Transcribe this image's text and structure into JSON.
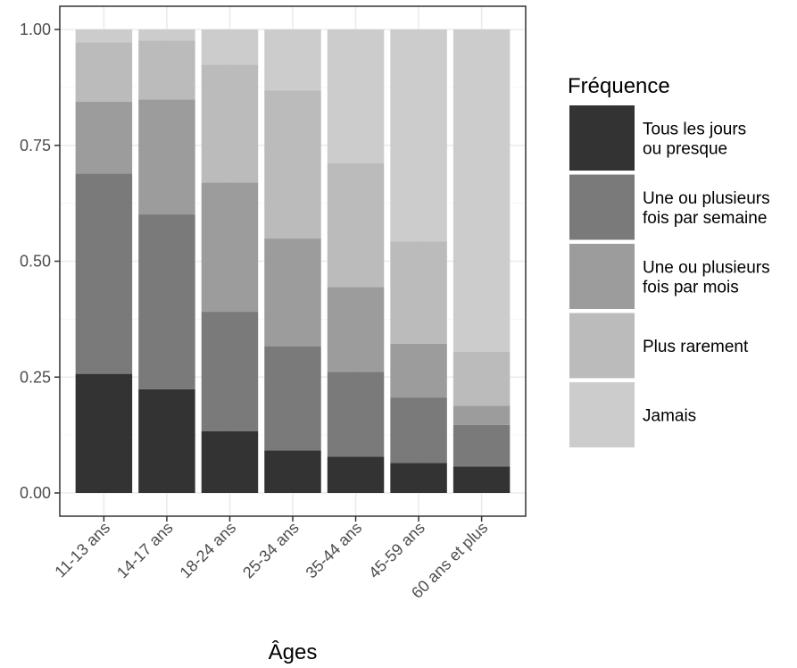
{
  "chart_data": {
    "type": "bar",
    "stacked": true,
    "xlabel": "Âges",
    "ylabel": "",
    "ylim": [
      0,
      1
    ],
    "yticks": [
      "0.00",
      "0.25",
      "0.50",
      "0.75",
      "1.00"
    ],
    "grid": true,
    "legend_position": "right",
    "legend_title": "Fréquence",
    "categories": [
      "11-13 ans",
      "14-17 ans",
      "18-24 ans",
      "25-34 ans",
      "35-44 ans",
      "45-59 ans",
      "60 ans et plus"
    ],
    "series": [
      {
        "name": "Tous les jours ou presque",
        "legend_lines": [
          "Tous les jours",
          "ou presque"
        ],
        "color": "#333333",
        "values": [
          0.257,
          0.224,
          0.133,
          0.092,
          0.078,
          0.065,
          0.057
        ]
      },
      {
        "name": "Une ou plusieurs fois par semaine",
        "legend_lines": [
          "Une ou plusieurs",
          "fois par semaine"
        ],
        "color": "#7a7a7a",
        "values": [
          0.432,
          0.377,
          0.258,
          0.224,
          0.183,
          0.141,
          0.09
        ]
      },
      {
        "name": "Une ou plusieurs fois par mois",
        "legend_lines": [
          "Une ou plusieurs",
          "fois par mois"
        ],
        "color": "#9c9c9c",
        "values": [
          0.155,
          0.248,
          0.279,
          0.233,
          0.183,
          0.116,
          0.041
        ]
      },
      {
        "name": "Plus rarement",
        "legend_lines": [
          "Plus rarement"
        ],
        "color": "#bbbbbb",
        "values": [
          0.128,
          0.127,
          0.254,
          0.319,
          0.267,
          0.221,
          0.117
        ]
      },
      {
        "name": "Jamais",
        "legend_lines": [
          "Jamais"
        ],
        "color": "#cccccc",
        "values": [
          0.028,
          0.024,
          0.076,
          0.132,
          0.289,
          0.457,
          0.695
        ]
      }
    ]
  }
}
